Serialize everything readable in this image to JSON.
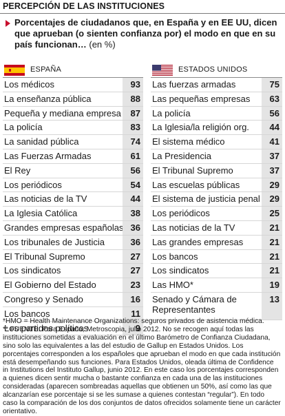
{
  "title": "PERCEPCIÓN DE LAS INSTITUCIONES",
  "subtitle_main": "Porcentajes de ciudadanos que, en España y en EE UU, dicen que aprueban (o sienten confianza por) el modo en que en su país funcionan…",
  "subtitle_unit": "(en %)",
  "colors": {
    "spain_red": "#c60b1e",
    "spain_yellow": "#ffc400",
    "us_red": "#b22234",
    "us_blue": "#3c3b6e",
    "value_bg": "#e4e4e4",
    "bullet": "#c8102e"
  },
  "chart_data": [
    {
      "type": "table",
      "title": "ESPAÑA",
      "icon": "spain-flag",
      "categories": [
        "Los médicos",
        "La enseñanza pública",
        "Pequeña y mediana empresa",
        "La policía",
        "La sanidad pública",
        "Las Fuerzas Armadas",
        "El Rey",
        "Los periódicos",
        "Las noticias de la TV",
        "La Iglesia Católica",
        "Grandes empresas españolas",
        "Los tribunales de Justicia",
        "El Tribunal Supremo",
        "Los sindicatos",
        "El Gobierno del Estado",
        "Congreso y Senado",
        "Los bancos",
        "Los partidos políticos"
      ],
      "values": [
        93,
        88,
        87,
        83,
        74,
        61,
        56,
        54,
        44,
        38,
        36,
        36,
        27,
        27,
        23,
        16,
        11,
        9
      ]
    },
    {
      "type": "table",
      "title": "ESTADOS UNIDOS",
      "icon": "us-flag",
      "categories": [
        "Las fuerzas armadas",
        "Las pequeñas empresas",
        "La policía",
        "La Iglesia/la religión org.",
        "El sistema médico",
        "La Presidencia",
        "El Tribunal Supremo",
        "Las escuelas públicas",
        "El sistema de justicia penal",
        "Los periódicos",
        "Las noticias de la TV",
        "Las grandes empresas",
        "Los bancos",
        "Los sindicatos",
        "Las HMO*",
        "Senado y Cámara de Representantes"
      ],
      "values": [
        75,
        63,
        56,
        44,
        41,
        37,
        37,
        29,
        29,
        25,
        21,
        21,
        21,
        21,
        19,
        13
      ]
    }
  ],
  "notes": [
    "*HMO = Health Maintenance Organizations: seguros privados de asistencia médica.",
    "** FUENTE: Para España, Metroscopia, julio 2012. No se recogen aquí todas las instituciones sometidas a evaluación en el último Barómetro de Confianza Ciudadana, sino solo las equivalentes a las del estudio de Gallup en Estados Unidos. Los porcentajes corresponden a los españoles que aprueban el modo en que cada institución está desempeñando sus funciones. Para Estados Unidos, oleada última de Confidence in Institutions del Instituto Gallup, junio 2012. En este caso los porcentajes corresponden a quienes dicen sentir mucha o bastante confianza en cada una de las instituciones consideradas (aparecen sombreadas aquellas que obtienen un 50%, así como las que alcanzarían ese porcentaje si se les sumase a quienes contestan “regular”). En todo caso la comparación de los dos conjuntos de datos ofrecidos solamente tiene un carácter orientativo."
  ]
}
